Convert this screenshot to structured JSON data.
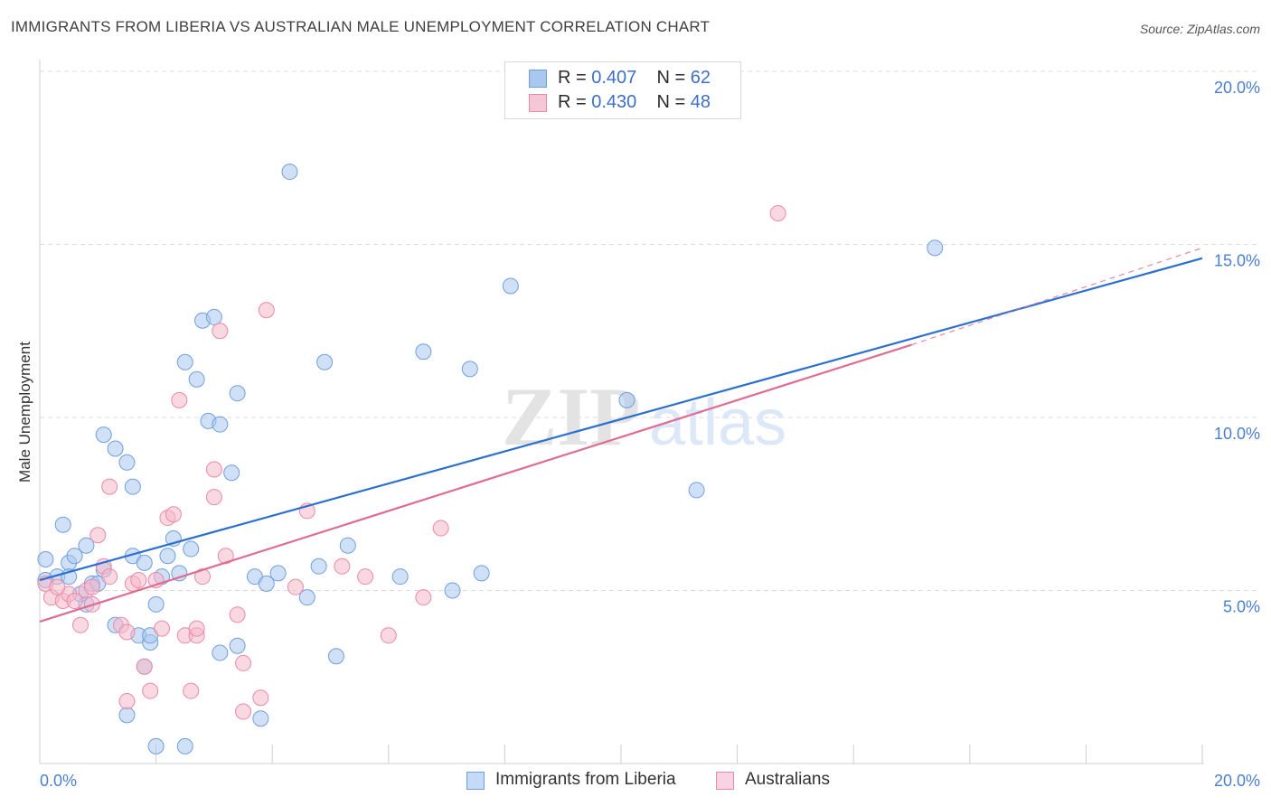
{
  "chart_data": {
    "type": "scatter",
    "title": "IMMIGRANTS FROM LIBERIA VS AUSTRALIAN MALE UNEMPLOYMENT CORRELATION CHART",
    "source": "Source: ZipAtlas.com",
    "xlabel": "",
    "ylabel": "Male Unemployment",
    "xlim": [
      0,
      20
    ],
    "ylim": [
      0,
      20
    ],
    "x_tick_labels": [
      "0.0%",
      "20.0%"
    ],
    "y_ticks": [
      {
        "value": 20,
        "label": "20.0%"
      },
      {
        "value": 15,
        "label": "15.0%"
      },
      {
        "value": 10,
        "label": "10.0%"
      },
      {
        "value": 5,
        "label": "5.0%"
      }
    ],
    "watermark": "ZIPatlas",
    "legend_stats": [
      {
        "r_label": "R =",
        "r_value": "0.407",
        "n_label": "N =",
        "n_value": "62"
      },
      {
        "r_label": "R =",
        "r_value": "0.430",
        "n_label": "N =",
        "n_value": "48"
      }
    ],
    "series": [
      {
        "name": "Immigrants from Liberia",
        "color": "#a9c8f0",
        "stroke": "#6f9fde",
        "line_color": "#2b6fd0",
        "trend": {
          "x0": 0,
          "y0": 5.3,
          "x1": 20,
          "y1": 14.6
        },
        "points": [
          [
            0.1,
            5.9
          ],
          [
            0.1,
            5.3
          ],
          [
            0.3,
            5.4
          ],
          [
            0.4,
            6.9
          ],
          [
            0.5,
            5.8
          ],
          [
            0.5,
            5.4
          ],
          [
            0.6,
            6.0
          ],
          [
            0.7,
            4.9
          ],
          [
            0.8,
            4.6
          ],
          [
            0.8,
            6.3
          ],
          [
            0.9,
            5.2
          ],
          [
            1.0,
            5.2
          ],
          [
            1.1,
            5.6
          ],
          [
            1.1,
            9.5
          ],
          [
            1.3,
            9.1
          ],
          [
            1.3,
            4.0
          ],
          [
            1.5,
            8.7
          ],
          [
            1.6,
            6.0
          ],
          [
            1.7,
            3.7
          ],
          [
            1.9,
            3.5
          ],
          [
            2.0,
            4.6
          ],
          [
            2.0,
            0.5
          ],
          [
            2.1,
            5.4
          ],
          [
            2.2,
            6.0
          ],
          [
            2.3,
            6.5
          ],
          [
            2.4,
            5.5
          ],
          [
            2.5,
            11.6
          ],
          [
            2.6,
            6.2
          ],
          [
            2.7,
            11.1
          ],
          [
            2.8,
            12.8
          ],
          [
            2.9,
            9.9
          ],
          [
            3.0,
            12.9
          ],
          [
            3.1,
            9.8
          ],
          [
            3.3,
            8.4
          ],
          [
            3.4,
            10.7
          ],
          [
            3.1,
            3.2
          ],
          [
            3.4,
            3.4
          ],
          [
            3.7,
            5.4
          ],
          [
            3.9,
            5.2
          ],
          [
            4.1,
            5.5
          ],
          [
            4.3,
            17.1
          ],
          [
            4.6,
            4.8
          ],
          [
            4.8,
            5.7
          ],
          [
            4.9,
            11.6
          ],
          [
            5.1,
            3.1
          ],
          [
            5.3,
            6.3
          ],
          [
            6.2,
            5.4
          ],
          [
            6.6,
            11.9
          ],
          [
            7.1,
            5.0
          ],
          [
            7.4,
            11.4
          ],
          [
            7.6,
            5.5
          ],
          [
            8.1,
            13.8
          ],
          [
            10.1,
            10.5
          ],
          [
            11.3,
            7.9
          ],
          [
            15.4,
            14.9
          ],
          [
            1.6,
            8.0
          ],
          [
            1.8,
            5.8
          ],
          [
            1.9,
            3.7
          ],
          [
            2.5,
            0.5
          ],
          [
            1.5,
            1.4
          ],
          [
            3.8,
            1.3
          ],
          [
            1.8,
            2.8
          ]
        ]
      },
      {
        "name": "Australians",
        "color": "#f5b8cb",
        "stroke": "#e98aa8",
        "line_color": "#e06b93",
        "trend": {
          "x0": 0,
          "y0": 4.1,
          "x1": 15.0,
          "y1": 12.1
        },
        "trend_ext": {
          "x0": 15.0,
          "y0": 12.1,
          "x1": 20,
          "y1": 14.9
        },
        "points": [
          [
            0.1,
            5.2
          ],
          [
            0.2,
            4.8
          ],
          [
            0.4,
            4.7
          ],
          [
            0.5,
            4.9
          ],
          [
            0.6,
            4.7
          ],
          [
            0.7,
            4.0
          ],
          [
            0.8,
            5.0
          ],
          [
            0.9,
            5.1
          ],
          [
            1.0,
            6.6
          ],
          [
            1.1,
            5.7
          ],
          [
            1.2,
            5.4
          ],
          [
            1.2,
            8.0
          ],
          [
            1.4,
            4.0
          ],
          [
            1.5,
            3.8
          ],
          [
            1.6,
            5.2
          ],
          [
            1.7,
            5.3
          ],
          [
            1.8,
            2.8
          ],
          [
            1.9,
            2.1
          ],
          [
            2.0,
            5.3
          ],
          [
            2.1,
            3.9
          ],
          [
            2.2,
            7.1
          ],
          [
            2.3,
            7.2
          ],
          [
            2.4,
            10.5
          ],
          [
            2.5,
            3.7
          ],
          [
            2.6,
            2.1
          ],
          [
            2.7,
            3.7
          ],
          [
            2.8,
            5.4
          ],
          [
            3.0,
            8.5
          ],
          [
            3.0,
            7.7
          ],
          [
            3.1,
            12.5
          ],
          [
            3.2,
            6.0
          ],
          [
            3.4,
            4.3
          ],
          [
            3.5,
            1.5
          ],
          [
            3.5,
            2.9
          ],
          [
            3.8,
            1.9
          ],
          [
            3.9,
            13.1
          ],
          [
            4.4,
            5.1
          ],
          [
            4.6,
            7.3
          ],
          [
            5.2,
            5.7
          ],
          [
            5.6,
            5.4
          ],
          [
            6.0,
            3.7
          ],
          [
            6.6,
            4.8
          ],
          [
            6.9,
            6.8
          ],
          [
            12.7,
            15.9
          ],
          [
            0.3,
            5.1
          ],
          [
            1.5,
            1.8
          ],
          [
            0.9,
            4.6
          ],
          [
            2.7,
            3.9
          ]
        ]
      }
    ]
  }
}
